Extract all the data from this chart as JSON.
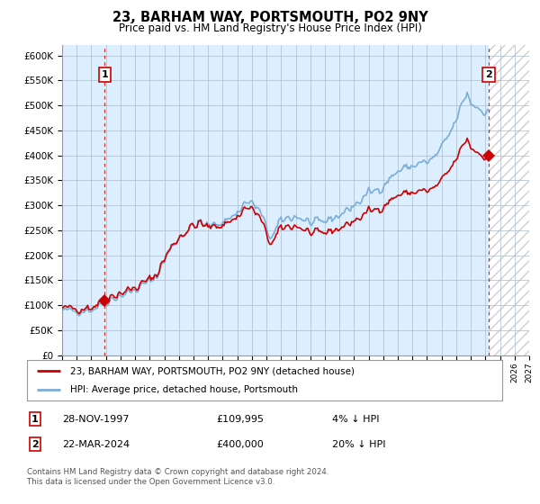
{
  "title": "23, BARHAM WAY, PORTSMOUTH, PO2 9NY",
  "subtitle": "Price paid vs. HM Land Registry's House Price Index (HPI)",
  "ylim": [
    0,
    620000
  ],
  "xlim_start": 1995.0,
  "xlim_end": 2027.0,
  "sale1_year": 1997.92,
  "sale1_price": 109995,
  "sale2_year": 2024.22,
  "sale2_price": 400000,
  "legend_line1": "23, BARHAM WAY, PORTSMOUTH, PO2 9NY (detached house)",
  "legend_line2": "HPI: Average price, detached house, Portsmouth",
  "table_row1": [
    "1",
    "28-NOV-1997",
    "£109,995",
    "4% ↓ HPI"
  ],
  "table_row2": [
    "2",
    "22-MAR-2024",
    "£400,000",
    "20% ↓ HPI"
  ],
  "footer": "Contains HM Land Registry data © Crown copyright and database right 2024.\nThis data is licensed under the Open Government Licence v3.0.",
  "hpi_color": "#7aaed6",
  "sale_color": "#cc0000",
  "bg_color": "#ddeeff",
  "grid_color": "#aabbcc"
}
